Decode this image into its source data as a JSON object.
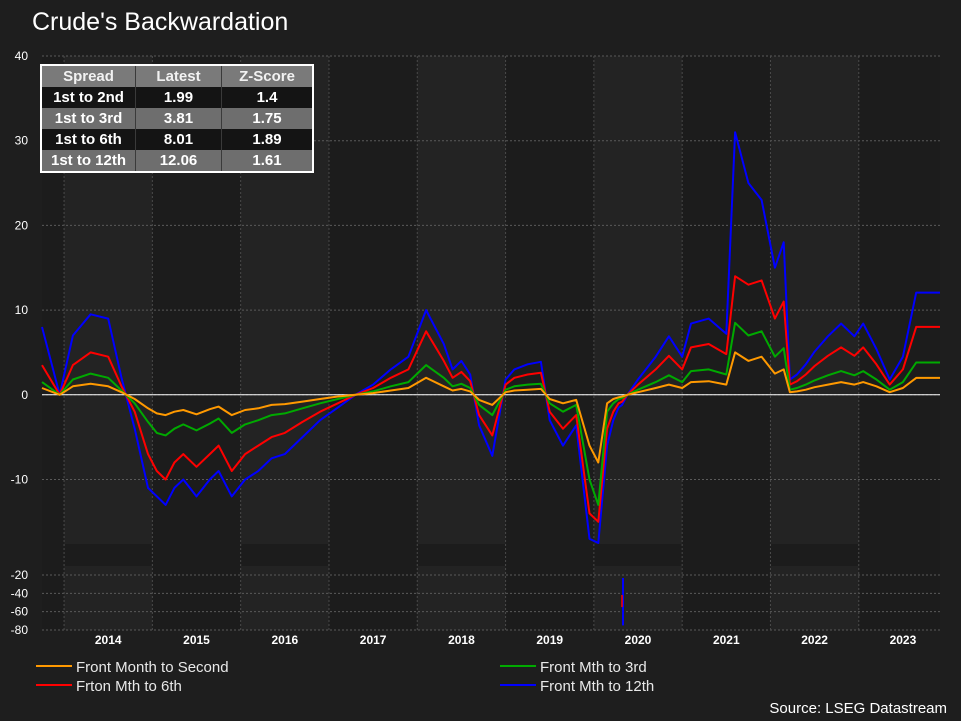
{
  "title": "Crude's Backwardation",
  "source": "Source: LSEG Datastream",
  "table": {
    "headers": [
      "Spread",
      "Latest",
      "Z-Score"
    ],
    "rows": [
      [
        "1st to 2nd",
        "1.99",
        "1.4"
      ],
      [
        "1st to 3rd",
        "3.81",
        "1.75"
      ],
      [
        "1st to 6th",
        "8.01",
        "1.89"
      ],
      [
        "1st to 12th",
        "12.06",
        "1.61"
      ]
    ]
  },
  "legend": [
    {
      "label": "Front Month to Second",
      "color": "#ff9900"
    },
    {
      "label": "Front Mth to 3rd",
      "color": "#00aa00"
    },
    {
      "label": "Frton Mth to 6th",
      "color": "#ff0000"
    },
    {
      "label": "Front Mth to 12th",
      "color": "#0000ff"
    }
  ],
  "chart_data": {
    "type": "line",
    "title": "Crude's Backwardation",
    "x_range": [
      2013.25,
      2023.42
    ],
    "x_tick_labels": [
      "2014",
      "2015",
      "2016",
      "2017",
      "2018",
      "2019",
      "2020",
      "2021",
      "2022",
      "2023"
    ],
    "y_upper_ticks": [
      40,
      30,
      20,
      10,
      0,
      -10
    ],
    "y_lower_ticks": [
      -20,
      -40,
      -60,
      -80
    ],
    "y_upper_range": [
      -17.5,
      40
    ],
    "y_lower_range": [
      -80,
      -20
    ],
    "grid": true,
    "zero_line": true,
    "x": [
      2013.25,
      2013.45,
      2013.6,
      2013.8,
      2014.0,
      2014.15,
      2014.3,
      2014.45,
      2014.55,
      2014.65,
      2014.75,
      2014.85,
      2015.0,
      2015.15,
      2015.25,
      2015.4,
      2015.55,
      2015.7,
      2015.85,
      2016.0,
      2016.2,
      2016.4,
      2016.6,
      2016.8,
      2017.0,
      2017.2,
      2017.4,
      2017.6,
      2017.8,
      2017.9,
      2018.0,
      2018.1,
      2018.2,
      2018.35,
      2018.5,
      2018.6,
      2018.75,
      2018.9,
      2019.0,
      2019.15,
      2019.3,
      2019.45,
      2019.55,
      2019.65,
      2019.72,
      2019.78,
      2019.82,
      2019.88,
      2020.0,
      2020.2,
      2020.35,
      2020.5,
      2020.6,
      2020.8,
      2021.0,
      2021.1,
      2021.25,
      2021.4,
      2021.55,
      2021.65,
      2021.72,
      2021.8,
      2021.9,
      2022.0,
      2022.15,
      2022.3,
      2022.45,
      2022.55,
      2022.7,
      2022.85,
      2023.0,
      2023.15,
      2023.3,
      2023.42
    ],
    "series": [
      {
        "name": "Front Month to Second",
        "color": "#ff9900",
        "values": [
          0.8,
          0,
          1,
          1.3,
          1,
          0.3,
          -0.5,
          -1.6,
          -2.2,
          -2.4,
          -2,
          -1.8,
          -2.3,
          -1.7,
          -1.4,
          -2.4,
          -1.8,
          -1.6,
          -1.2,
          -1.1,
          -0.8,
          -0.5,
          -0.2,
          0,
          0.2,
          0.5,
          0.8,
          2,
          1,
          0.5,
          0.7,
          0.4,
          -0.6,
          -1.2,
          0.3,
          0.5,
          0.6,
          0.7,
          -0.5,
          -1,
          -0.6,
          -6,
          -8,
          -1,
          -0.5,
          -0.3,
          -0.2,
          0,
          0.3,
          0.8,
          1.2,
          0.8,
          1.5,
          1.6,
          1.2,
          5,
          4,
          4.5,
          2.5,
          3,
          0.3,
          0.4,
          0.6,
          0.9,
          1.2,
          1.5,
          1.2,
          1.5,
          1,
          0.3,
          0.8,
          1.99,
          1.99,
          1.99
        ]
      },
      {
        "name": "Front Mth to 3rd",
        "color": "#00aa00",
        "values": [
          1.5,
          0,
          1.8,
          2.5,
          2,
          0.5,
          -1,
          -3.2,
          -4.5,
          -4.8,
          -4,
          -3.5,
          -4.2,
          -3.4,
          -2.8,
          -4.5,
          -3.5,
          -3,
          -2.4,
          -2.2,
          -1.6,
          -1,
          -0.5,
          0,
          0.4,
          1,
          1.5,
          3.5,
          2,
          1,
          1.3,
          0.8,
          -1.2,
          -2.4,
          0.6,
          1,
          1.2,
          1.3,
          -1,
          -2,
          -1.2,
          -10,
          -13,
          -2,
          -1,
          -0.5,
          -0.4,
          0,
          0.6,
          1.5,
          2.3,
          1.5,
          2.8,
          3,
          2.4,
          8.5,
          7,
          7.5,
          4.5,
          5.5,
          0.6,
          0.8,
          1.2,
          1.7,
          2.3,
          2.8,
          2.3,
          2.8,
          1.8,
          0.6,
          1.5,
          3.81,
          3.81,
          3.81
        ]
      },
      {
        "name": "Frton Mth to 6th",
        "color": "#ff0000",
        "values": [
          3.5,
          0,
          3.5,
          5,
          4.5,
          1,
          -2,
          -7,
          -9,
          -10,
          -8,
          -7,
          -8.5,
          -7,
          -6,
          -9,
          -7,
          -6,
          -5,
          -4.5,
          -3.2,
          -2,
          -1,
          0,
          0.8,
          2,
          3,
          7.5,
          4,
          2,
          2.7,
          1.6,
          -2.4,
          -4.8,
          1.2,
          2,
          2.4,
          2.6,
          -2,
          -4,
          -2.4,
          -14,
          -15,
          -4,
          -2,
          -1,
          -0.8,
          0,
          1.2,
          3,
          4.6,
          3,
          5.6,
          6,
          4.8,
          14,
          13,
          13.5,
          9,
          11,
          1.2,
          1.6,
          2.4,
          3.4,
          4.6,
          5.6,
          4.6,
          5.6,
          3.6,
          1.2,
          3,
          8.01,
          8.01,
          8.01
        ]
      },
      {
        "name": "Front Mth to 12th",
        "color": "#0000ff",
        "values": [
          8,
          0,
          7,
          9.5,
          9,
          2,
          -4,
          -11,
          -12,
          -13,
          -11,
          -10,
          -12,
          -10,
          -9,
          -12,
          -10,
          -9,
          -7.5,
          -7,
          -5,
          -3,
          -1.5,
          0,
          1.2,
          3,
          4.5,
          10,
          6,
          3,
          4,
          2.4,
          -3.6,
          -7.2,
          1.8,
          3,
          3.6,
          3.9,
          -3,
          -6,
          -3.6,
          -17,
          -17.5,
          -6,
          -3,
          -1.5,
          -1.2,
          0,
          1.8,
          4.5,
          6.9,
          4.5,
          8.4,
          9,
          7.2,
          31,
          25,
          23,
          15,
          18,
          1.8,
          2.4,
          3.6,
          5.1,
          6.9,
          8.4,
          6.9,
          8.4,
          5.4,
          1.8,
          4.5,
          12.06,
          12.06,
          12.06
        ]
      }
    ]
  }
}
